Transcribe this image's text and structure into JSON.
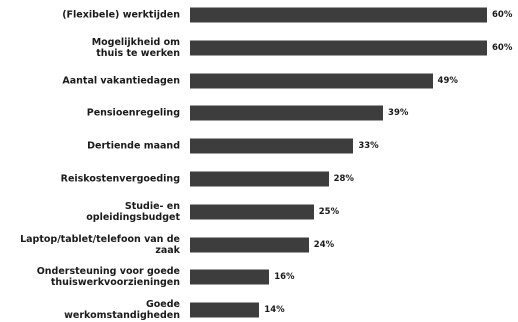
{
  "chart_data": {
    "type": "bar",
    "orientation": "horizontal",
    "categories": [
      "(Flexibele) werktijden",
      "Mogelijkheid om\nthuis te werken",
      "Aantal vakantiedagen",
      "Pensioenregeling",
      "Dertiende maand",
      "Reiskostenvergoeding",
      "Studie- en\nopleidingsbudget",
      "Laptop/tablet/telefoon van de zaak",
      "Ondersteuning voor goede\nthuiswerkvoorzieningen",
      "Goede\nwerkomstandigheden"
    ],
    "values": [
      60,
      60,
      49,
      39,
      33,
      28,
      25,
      24,
      16,
      14
    ],
    "value_labels": [
      "60%",
      "60%",
      "49%",
      "39%",
      "33%",
      "28%",
      "25%",
      "24%",
      "16%",
      "14%"
    ],
    "unit": "%",
    "xlim": [
      0,
      60
    ],
    "grid": false,
    "bar_color": "#3d3d3d"
  }
}
